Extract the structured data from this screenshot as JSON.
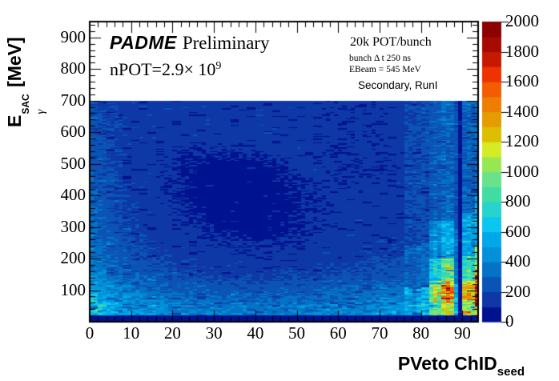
{
  "annotations": {
    "experiment": "PADME",
    "preliminary": "Preliminary",
    "npot_prefix": "nPOT=2.9× 10",
    "npot_exponent": "9",
    "info_lines": [
      "20k POT/bunch",
      "bunch Δ t 250 ns",
      "EBeam = 545 MeV",
      "Secondary, RunI"
    ]
  },
  "axes": {
    "x_title_main": "PVeto ChID",
    "x_title_sub": "seed",
    "y_title_main": "E",
    "y_title_sub": "γ",
    "y_title_sup": "SAC",
    "y_title_rest": " [MeV]"
  },
  "chart_data": {
    "type": "heatmap",
    "x_label": "PVeto ChID_seed",
    "y_label": "E_gamma^SAC [MeV]",
    "x_range": [
      0,
      93.8
    ],
    "y_range": [
      0,
      950
    ],
    "z_range": [
      0,
      2000
    ],
    "data_y_max": 700,
    "x_ticks": [
      0,
      10,
      20,
      30,
      40,
      50,
      60,
      70,
      80,
      90
    ],
    "y_ticks": [
      100,
      200,
      300,
      400,
      500,
      600,
      700,
      800,
      900
    ],
    "z_ticks": [
      0,
      200,
      400,
      600,
      800,
      1000,
      1200,
      1400,
      1600,
      1800,
      2000
    ],
    "x_minor_step": 2,
    "y_minor_step": 20,
    "grid_on": false,
    "palette": [
      "#00128f",
      "#0d38a6",
      "#0b53b4",
      "#0473c6",
      "#0291d9",
      "#00a8e9",
      "#0bc6ef",
      "#26d3cd",
      "#3fdda4",
      "#68e38c",
      "#97e754",
      "#d4ec25",
      "#ddbe00",
      "#e59c00",
      "#ef7d00",
      "#f35c00",
      "#ee3300",
      "#c61a00",
      "#a50b00",
      "#8b0000"
    ],
    "base_grid": {
      "x": [
        0,
        3,
        8,
        14,
        22,
        32,
        42,
        52,
        62,
        70,
        76,
        82,
        88,
        94
      ],
      "y": [
        0,
        25,
        60,
        100,
        150,
        210,
        290,
        390,
        490,
        590,
        700
      ],
      "v": [
        [
          700,
          600,
          500,
          440,
          400,
          370,
          370,
          380,
          400,
          420,
          450,
          480,
          500,
          510
        ],
        [
          700,
          600,
          500,
          440,
          400,
          370,
          370,
          380,
          400,
          420,
          450,
          480,
          500,
          510
        ],
        [
          680,
          570,
          470,
          410,
          360,
          330,
          330,
          340,
          360,
          390,
          430,
          460,
          480,
          490
        ],
        [
          560,
          470,
          390,
          330,
          290,
          260,
          260,
          270,
          290,
          310,
          340,
          370,
          390,
          400
        ],
        [
          430,
          360,
          300,
          250,
          210,
          180,
          175,
          185,
          210,
          230,
          255,
          280,
          300,
          310
        ],
        [
          380,
          310,
          255,
          205,
          160,
          130,
          120,
          135,
          165,
          185,
          205,
          225,
          245,
          255
        ],
        [
          330,
          270,
          215,
          165,
          120,
          85,
          75,
          100,
          140,
          155,
          165,
          180,
          195,
          205
        ],
        [
          300,
          240,
          190,
          140,
          95,
          65,
          60,
          95,
          125,
          130,
          140,
          150,
          160,
          170
        ],
        [
          280,
          220,
          175,
          130,
          95,
          70,
          80,
          120,
          115,
          115,
          125,
          135,
          145,
          155
        ],
        [
          260,
          205,
          170,
          145,
          130,
          140,
          155,
          135,
          120,
          120,
          130,
          140,
          150,
          160
        ],
        [
          220,
          185,
          160,
          150,
          145,
          150,
          140,
          125,
          120,
          125,
          130,
          140,
          150,
          160
        ]
      ]
    },
    "diagonal_band": {
      "points": [
        [
          40,
          645
        ],
        [
          48,
          565
        ],
        [
          55,
          470
        ],
        [
          62,
          360
        ],
        [
          69,
          265
        ],
        [
          78,
          215
        ]
      ],
      "half_width": 26,
      "value": 155,
      "ch_scale": 13
    },
    "stripes": [
      {
        "ch": 76,
        "profile": [
          [
            20,
            110,
            520
          ],
          [
            110,
            240,
            300
          ],
          [
            240,
            700,
            210
          ]
        ]
      },
      {
        "ch": 77,
        "profile": [
          [
            20,
            110,
            480
          ],
          [
            110,
            240,
            280
          ],
          [
            240,
            700,
            205
          ]
        ]
      },
      {
        "ch": 78,
        "profile": [
          [
            20,
            105,
            430
          ],
          [
            105,
            240,
            260
          ],
          [
            240,
            700,
            200
          ]
        ]
      },
      {
        "ch": 79,
        "profile": [
          [
            20,
            105,
            520
          ],
          [
            105,
            240,
            290
          ],
          [
            240,
            700,
            210
          ]
        ]
      },
      {
        "ch": 80,
        "profile": [
          [
            20,
            110,
            600
          ],
          [
            110,
            250,
            330
          ],
          [
            250,
            700,
            225
          ]
        ]
      },
      {
        "ch": 81,
        "profile": [
          [
            20,
            110,
            560
          ],
          [
            110,
            250,
            310
          ],
          [
            250,
            700,
            215
          ]
        ]
      },
      {
        "ch": 82,
        "profile": [
          [
            20,
            70,
            800
          ],
          [
            70,
            130,
            950
          ],
          [
            130,
            200,
            600
          ],
          [
            200,
            320,
            400
          ],
          [
            320,
            700,
            250
          ]
        ]
      },
      {
        "ch": 83,
        "profile": [
          [
            20,
            70,
            900
          ],
          [
            70,
            130,
            1150
          ],
          [
            130,
            200,
            700
          ],
          [
            200,
            320,
            450
          ],
          [
            320,
            700,
            270
          ]
        ]
      },
      {
        "ch": 84,
        "profile": [
          [
            20,
            70,
            850
          ],
          [
            70,
            130,
            1050
          ],
          [
            130,
            200,
            650
          ],
          [
            200,
            320,
            420
          ],
          [
            320,
            700,
            260
          ]
        ]
      },
      {
        "ch": 85,
        "profile": [
          [
            20,
            70,
            1100
          ],
          [
            70,
            130,
            1450
          ],
          [
            130,
            200,
            900
          ],
          [
            200,
            320,
            550
          ],
          [
            320,
            700,
            300
          ]
        ]
      },
      {
        "ch": 86,
        "profile": [
          [
            20,
            70,
            1200
          ],
          [
            70,
            130,
            1600
          ],
          [
            130,
            200,
            950
          ],
          [
            200,
            320,
            580
          ],
          [
            320,
            700,
            310
          ]
        ]
      },
      {
        "ch": 87,
        "profile": [
          [
            20,
            70,
            1050
          ],
          [
            70,
            130,
            1350
          ],
          [
            130,
            200,
            850
          ],
          [
            200,
            320,
            520
          ],
          [
            320,
            700,
            290
          ]
        ]
      },
      {
        "ch": 88,
        "profile": [
          [
            20,
            120,
            600
          ],
          [
            120,
            300,
            350
          ],
          [
            300,
            700,
            240
          ]
        ]
      },
      {
        "ch": 89,
        "profile": [
          [
            0,
            700,
            80
          ]
        ]
      },
      {
        "ch": 90,
        "profile": [
          [
            20,
            70,
            950
          ],
          [
            70,
            130,
            1250
          ],
          [
            130,
            210,
            800
          ],
          [
            210,
            350,
            500
          ],
          [
            350,
            700,
            280
          ]
        ]
      },
      {
        "ch": 91,
        "profile": [
          [
            20,
            70,
            1050
          ],
          [
            70,
            130,
            1400
          ],
          [
            130,
            210,
            850
          ],
          [
            210,
            350,
            520
          ],
          [
            350,
            700,
            290
          ]
        ]
      },
      {
        "ch": 92,
        "profile": [
          [
            20,
            70,
            900
          ],
          [
            70,
            130,
            1150
          ],
          [
            130,
            210,
            750
          ],
          [
            210,
            350,
            480
          ],
          [
            350,
            700,
            270
          ]
        ]
      },
      {
        "ch": 93,
        "profile": [
          [
            20,
            45,
            1300
          ],
          [
            45,
            110,
            1900
          ],
          [
            110,
            170,
            1500
          ],
          [
            170,
            240,
            1000
          ],
          [
            240,
            400,
            550
          ],
          [
            400,
            700,
            320
          ]
        ]
      }
    ],
    "bottom_band": {
      "y_max": 20,
      "value": 60
    },
    "noise": {
      "base": 0.78,
      "amp": 0.44,
      "dropout_chance": 0.06,
      "dropout_factor": 0.5,
      "spike_threshold": 0.95,
      "spike_factor": 1.3
    }
  }
}
